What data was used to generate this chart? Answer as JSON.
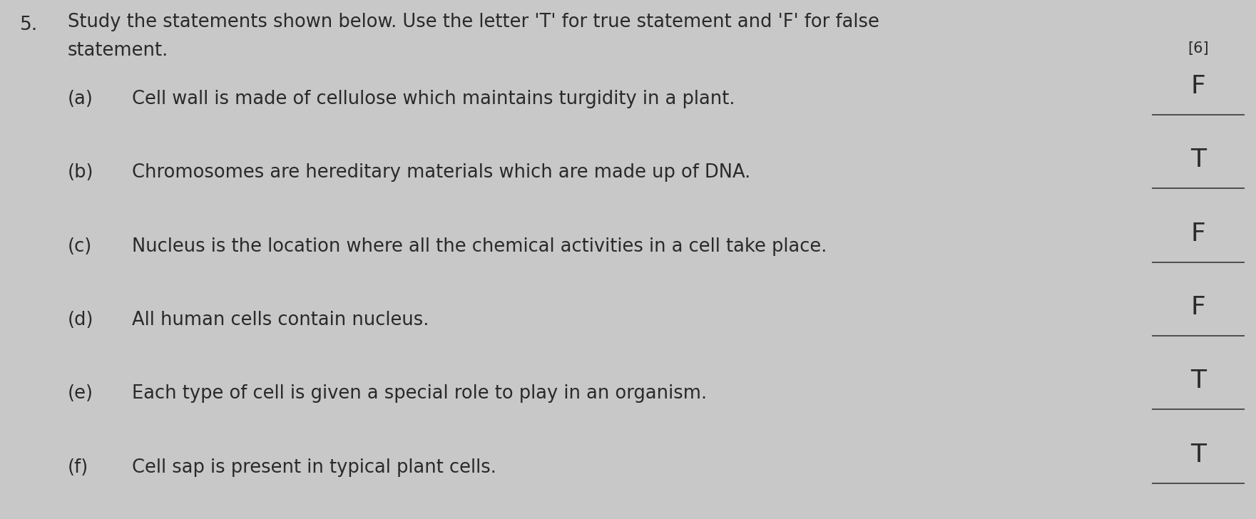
{
  "bg_color": "#c8c8c8",
  "question_number": "5.",
  "instruction_line1": "Study the statements shown below. Use the letter 'T' for true statement and 'F' for false",
  "instruction_line2": "statement.",
  "marks": "[6]",
  "items": [
    {
      "label": "(a)",
      "text": "Cell wall is made of cellulose which maintains turgidity in a plant.",
      "answer": "F"
    },
    {
      "label": "(b)",
      "text": "Chromosomes are hereditary materials which are made up of DNA.",
      "answer": "T"
    },
    {
      "label": "(c)",
      "text": "Nucleus is the location where all the chemical activities in a cell take place.",
      "answer": "F"
    },
    {
      "label": "(d)",
      "text": "All human cells contain nucleus.",
      "answer": "F"
    },
    {
      "label": "(e)",
      "text": "Each type of cell is given a special role to play in an organism.",
      "answer": "T"
    },
    {
      "label": "(f)",
      "text": "Cell sap is present in typical plant cells.",
      "answer": "T"
    }
  ],
  "text_color": "#2a2a2a",
  "answer_color": "#2a2a2a",
  "line_color": "#444444",
  "font_size_instruction": 18.5,
  "font_size_item": 18.5,
  "font_size_answer": 26,
  "font_size_qnum": 19,
  "font_size_marks": 15,
  "font_size_label": 18.5
}
